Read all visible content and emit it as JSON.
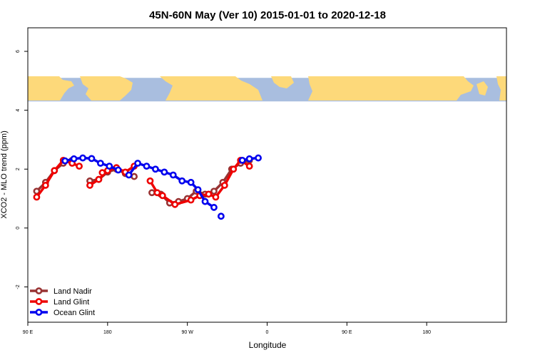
{
  "chart_data": {
    "type": "line",
    "title": "45N-60N May (Ver 10)   2015-01-01 to 2020-12-18",
    "xlabel": "Longitude",
    "ylabel": "XCO2 - MLO trend (ppm)",
    "xlim": [
      -90,
      180
    ],
    "ylim": [
      -3.2,
      6.8
    ],
    "x_ticks": [
      {
        "value": -90,
        "label": "90 E"
      },
      {
        "value": -45,
        "label": "180"
      },
      {
        "value": 0,
        "label": "90 W"
      },
      {
        "value": 45,
        "label": "0"
      },
      {
        "value": 90,
        "label": "90 E"
      },
      {
        "value": 135,
        "label": "180"
      }
    ],
    "y_ticks": [
      -2,
      0,
      2,
      4,
      6
    ],
    "grid": false,
    "legend_position": "bottom-left",
    "map_strip": {
      "ymin": 4.3,
      "ymax": 5.1,
      "ocean_color": "#a9bedf",
      "land_color": "#fdd97a"
    },
    "series": [
      {
        "name": "Land Nadir",
        "color": "#993333",
        "points": [
          [
            -85,
            1.25
          ],
          [
            -80,
            1.55
          ],
          [
            -75,
            1.95
          ],
          [
            -70,
            2.2
          ],
          [
            -65,
            2.3
          ],
          [
            -55,
            1.6
          ],
          [
            -50,
            1.65
          ],
          [
            -45,
            1.9
          ],
          [
            -40,
            2.0
          ],
          [
            -35,
            1.85
          ],
          [
            -30,
            1.75
          ],
          [
            -20,
            1.2
          ],
          [
            -15,
            1.15
          ],
          [
            -10,
            0.85
          ],
          [
            -5,
            0.9
          ],
          [
            0,
            1.0
          ],
          [
            5,
            1.25
          ],
          [
            10,
            1.15
          ],
          [
            15,
            1.25
          ],
          [
            20,
            1.55
          ],
          [
            25,
            2.0
          ],
          [
            30,
            2.2
          ],
          [
            35,
            2.3
          ]
        ],
        "segments": [
          [
            0,
            4
          ],
          [
            5,
            10
          ],
          [
            11,
            22
          ]
        ]
      },
      {
        "name": "Land Glint",
        "color": "#ee0000",
        "points": [
          [
            -85,
            1.05
          ],
          [
            -80,
            1.45
          ],
          [
            -75,
            1.95
          ],
          [
            -70,
            2.3
          ],
          [
            -65,
            2.2
          ],
          [
            -61,
            2.1
          ],
          [
            -48,
            1.88
          ],
          [
            -55,
            1.45
          ],
          [
            -50,
            1.65
          ],
          [
            -45,
            1.95
          ],
          [
            -40,
            2.05
          ],
          [
            -35,
            1.9
          ],
          [
            -30,
            2.1
          ],
          [
            -21,
            1.6
          ],
          [
            -17,
            1.2
          ],
          [
            -14,
            1.1
          ],
          [
            -7,
            0.8
          ],
          [
            2,
            0.95
          ],
          [
            7,
            1.1
          ],
          [
            12,
            1.15
          ],
          [
            16,
            1.05
          ],
          [
            21,
            1.45
          ],
          [
            26,
            2.0
          ],
          [
            30,
            2.3
          ],
          [
            35,
            2.1
          ]
        ],
        "segments": [
          [
            0,
            5
          ],
          [
            6,
            6
          ],
          [
            7,
            12
          ],
          [
            13,
            24
          ]
        ]
      },
      {
        "name": "Ocean Glint",
        "color": "#0000ee",
        "points": [
          [
            -69,
            2.28
          ],
          [
            -64,
            2.35
          ],
          [
            -59,
            2.38
          ],
          [
            -54,
            2.36
          ],
          [
            -49,
            2.2
          ],
          [
            -44,
            2.1
          ],
          [
            -39,
            1.97
          ],
          [
            -33,
            1.8
          ],
          [
            -28,
            2.2
          ],
          [
            -23,
            2.1
          ],
          [
            -18,
            2.0
          ],
          [
            -13,
            1.9
          ],
          [
            -8,
            1.8
          ],
          [
            -3,
            1.6
          ],
          [
            2,
            1.55
          ],
          [
            6,
            1.3
          ],
          [
            10,
            0.9
          ],
          [
            15,
            0.7
          ],
          [
            19,
            0.4
          ],
          [
            31,
            2.3
          ],
          [
            35,
            2.35
          ],
          [
            40,
            2.38
          ]
        ],
        "segments": [
          [
            0,
            6
          ],
          [
            7,
            17
          ],
          [
            18,
            18
          ],
          [
            19,
            21
          ]
        ]
      }
    ]
  }
}
